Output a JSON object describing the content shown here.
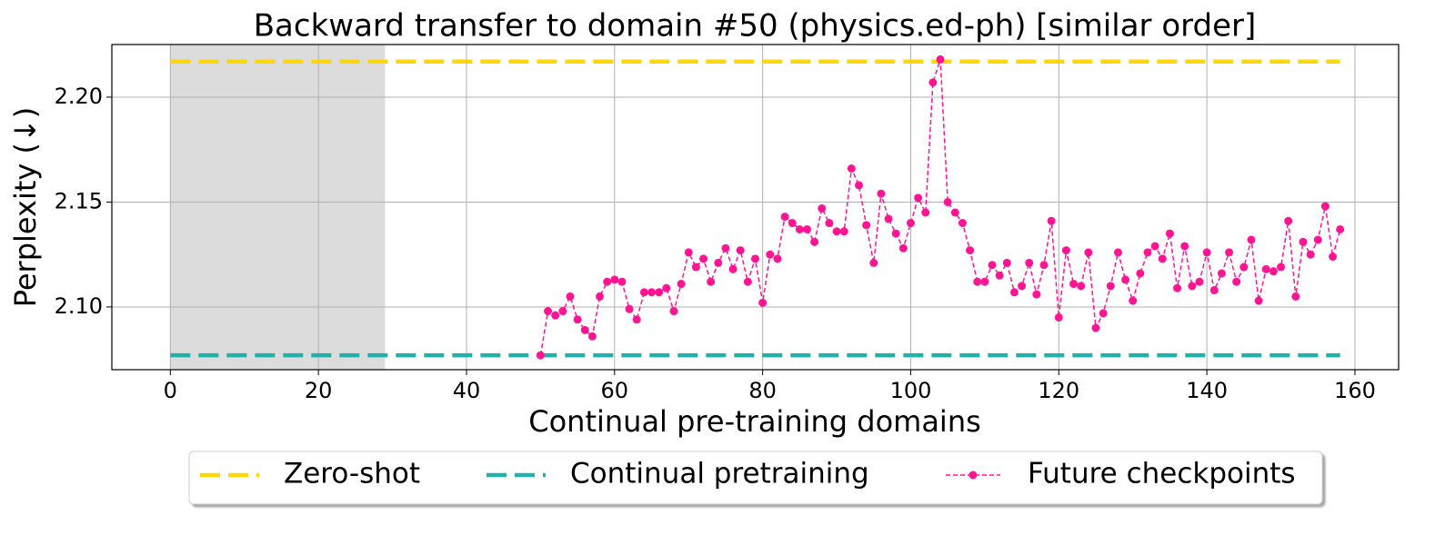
{
  "chart_data": {
    "type": "line",
    "title": "Backward transfer to domain #50 (physics.ed-ph) [similar order]",
    "xlabel": "Continual pre-training domains",
    "ylabel": "Perplexity (↓)",
    "xlim": [
      -7.9,
      165.9
    ],
    "ylim": [
      2.0701,
      2.2251
    ],
    "xticks": [
      0,
      20,
      40,
      60,
      80,
      100,
      120,
      140,
      160
    ],
    "yticks": [
      {
        "value": 2.1,
        "label": "2.10"
      },
      2.15,
      {
        "value": 2.2,
        "label": "2.20"
      }
    ],
    "grid": true,
    "shaded_span": [
      0,
      29
    ],
    "shaded_color": "#dcdcdc",
    "legend": "lower center outside",
    "series": [
      {
        "name": "Zero-shot",
        "color": "#ffd700",
        "style": "dashed",
        "x": [
          0,
          158
        ],
        "values": [
          2.217,
          2.217
        ]
      },
      {
        "name": "Continual pretraining",
        "color": "#20b2aa",
        "style": "dashed",
        "x": [
          0,
          158
        ],
        "values": [
          2.077,
          2.077
        ]
      },
      {
        "name": "Future checkpoints",
        "color": "#ff1493",
        "style": "dashed-markers",
        "x": [
          50,
          51,
          52,
          53,
          54,
          55,
          56,
          57,
          58,
          59,
          60,
          61,
          62,
          63,
          64,
          65,
          66,
          67,
          68,
          69,
          70,
          71,
          72,
          73,
          74,
          75,
          76,
          77,
          78,
          79,
          80,
          81,
          82,
          83,
          84,
          85,
          86,
          87,
          88,
          89,
          90,
          91,
          92,
          93,
          94,
          95,
          96,
          97,
          98,
          99,
          100,
          101,
          102,
          103,
          104,
          105,
          106,
          107,
          108,
          109,
          110,
          111,
          112,
          113,
          114,
          115,
          116,
          117,
          118,
          119,
          120,
          121,
          122,
          123,
          124,
          125,
          126,
          127,
          128,
          129,
          130,
          131,
          132,
          133,
          134,
          135,
          136,
          137,
          138,
          139,
          140,
          141,
          142,
          143,
          144,
          145,
          146,
          147,
          148,
          149,
          150,
          151,
          152,
          153,
          154,
          155,
          156,
          157,
          158
        ],
        "values": [
          2.077,
          2.098,
          2.096,
          2.098,
          2.105,
          2.094,
          2.089,
          2.086,
          2.105,
          2.112,
          2.113,
          2.112,
          2.099,
          2.094,
          2.107,
          2.107,
          2.107,
          2.109,
          2.098,
          2.111,
          2.126,
          2.119,
          2.123,
          2.112,
          2.121,
          2.128,
          2.118,
          2.127,
          2.112,
          2.123,
          2.102,
          2.125,
          2.123,
          2.143,
          2.14,
          2.137,
          2.137,
          2.131,
          2.147,
          2.14,
          2.136,
          2.136,
          2.166,
          2.158,
          2.139,
          2.121,
          2.154,
          2.142,
          2.135,
          2.128,
          2.14,
          2.152,
          2.145,
          2.207,
          2.218,
          2.15,
          2.145,
          2.14,
          2.127,
          2.112,
          2.112,
          2.12,
          2.115,
          2.121,
          2.107,
          2.11,
          2.121,
          2.106,
          2.12,
          2.141,
          2.095,
          2.127,
          2.111,
          2.11,
          2.126,
          2.09,
          2.097,
          2.11,
          2.126,
          2.113,
          2.103,
          2.116,
          2.126,
          2.129,
          2.123,
          2.135,
          2.109,
          2.129,
          2.11,
          2.112,
          2.126,
          2.108,
          2.116,
          2.126,
          2.112,
          2.119,
          2.132,
          2.103,
          2.118,
          2.117,
          2.119,
          2.141,
          2.105,
          2.131,
          2.125,
          2.132,
          2.148,
          2.124,
          2.137
        ]
      }
    ]
  }
}
